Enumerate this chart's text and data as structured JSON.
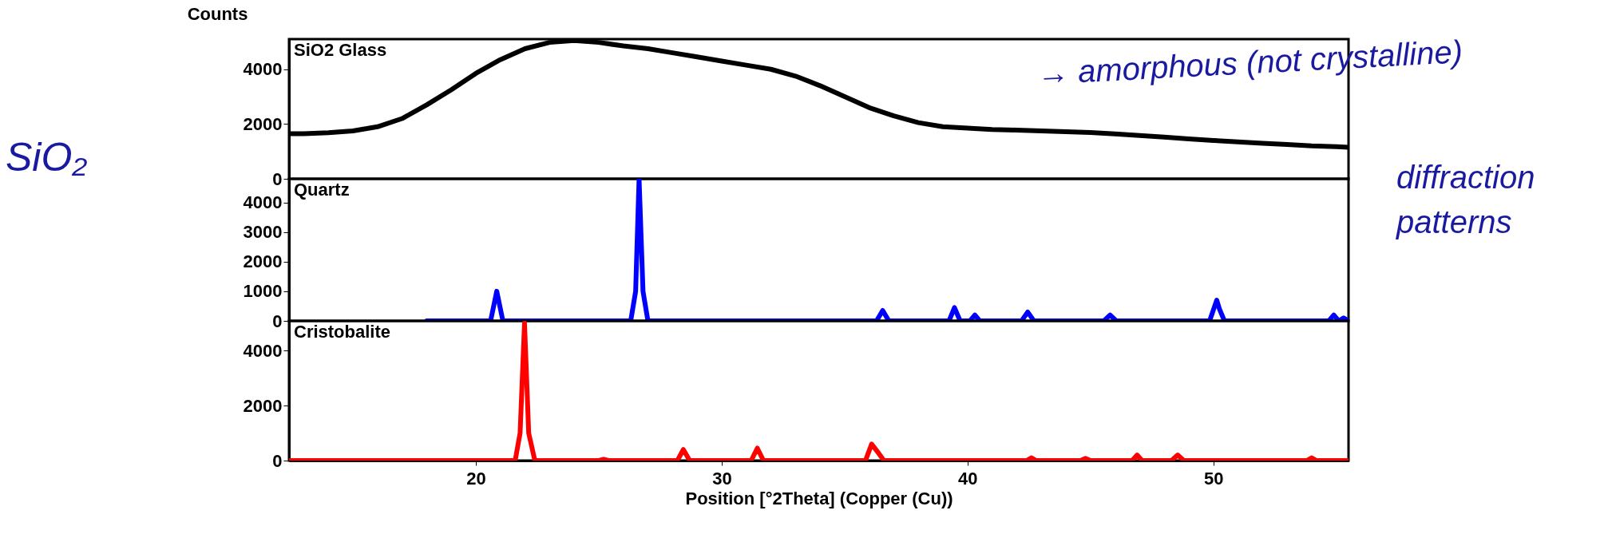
{
  "chart_data": [
    {
      "type": "line",
      "title": "SiO2 Glass",
      "ylabel": "Counts",
      "annotations": [
        "SiO₂",
        "→ amorphous (not crystalline)",
        "diffraction patterns"
      ],
      "x": [
        12.4,
        13,
        14,
        15,
        16,
        17,
        18,
        19,
        20,
        21,
        22,
        23,
        24,
        25,
        26,
        27,
        28,
        29,
        30,
        31,
        32,
        33,
        34,
        35,
        36,
        37,
        38,
        39,
        40,
        41,
        42,
        43,
        44,
        45,
        46,
        47,
        48,
        49,
        50,
        51,
        52,
        53,
        54,
        55,
        55.5
      ],
      "series": [
        {
          "color": "#000000",
          "values": [
            1650,
            1650,
            1680,
            1750,
            1900,
            2200,
            2700,
            3250,
            3850,
            4350,
            4750,
            4980,
            5050,
            4980,
            4850,
            4750,
            4600,
            4450,
            4300,
            4150,
            4000,
            3750,
            3400,
            3000,
            2600,
            2300,
            2050,
            1900,
            1850,
            1800,
            1780,
            1750,
            1720,
            1690,
            1640,
            1580,
            1520,
            1460,
            1400,
            1350,
            1300,
            1250,
            1200,
            1170,
            1150
          ]
        }
      ],
      "xlim": [
        12.4,
        55.5
      ],
      "ylim": [
        0,
        5100
      ],
      "yticks": [
        0,
        2000,
        4000
      ],
      "tick_labels": "y"
    },
    {
      "type": "line",
      "title": "Quartz",
      "x": [
        18,
        20.6,
        20.85,
        21.1,
        26.3,
        26.5,
        26.64,
        26.8,
        27.0,
        36.3,
        36.55,
        36.8,
        39.25,
        39.47,
        39.7,
        40.1,
        40.3,
        40.5,
        42.2,
        42.45,
        42.7,
        45.55,
        45.8,
        46.05,
        49.85,
        50.14,
        50.25,
        50.45,
        54.7,
        54.9,
        55.1,
        55.3,
        55.5
      ],
      "series": [
        {
          "color": "#0000ff",
          "values": [
            0,
            0,
            1000,
            0,
            0,
            1000,
            4800,
            1000,
            0,
            0,
            350,
            0,
            0,
            450,
            0,
            0,
            200,
            0,
            0,
            300,
            0,
            0,
            200,
            0,
            0,
            700,
            400,
            0,
            0,
            200,
            0,
            100,
            0
          ]
        }
      ],
      "xlim": [
        12.4,
        55.5
      ],
      "ylim": [
        0,
        4800
      ],
      "yticks": [
        0,
        1000,
        2000,
        3000,
        4000
      ],
      "tick_labels": "y"
    },
    {
      "type": "line",
      "title": "Cristobalite",
      "xlabel": "Position [°2Theta] (Copper (Cu))",
      "x": [
        12.4,
        21.6,
        21.8,
        21.98,
        22.15,
        22.4,
        25.0,
        25.2,
        25.4,
        28.2,
        28.44,
        28.7,
        31.2,
        31.45,
        31.7,
        35.85,
        36.1,
        36.4,
        36.6,
        42.4,
        42.6,
        42.8,
        44.6,
        44.8,
        45.0,
        46.7,
        46.9,
        47.1,
        48.3,
        48.55,
        48.8,
        53.8,
        54.0,
        54.2,
        55.5
      ],
      "series": [
        {
          "color": "#ff0000",
          "values": [
            0,
            0,
            1000,
            5000,
            1000,
            0,
            0,
            50,
            0,
            0,
            400,
            0,
            0,
            450,
            0,
            0,
            600,
            250,
            0,
            0,
            100,
            0,
            0,
            80,
            0,
            0,
            200,
            0,
            0,
            200,
            0,
            0,
            100,
            0,
            0
          ]
        }
      ],
      "xlim": [
        12.4,
        55.5
      ],
      "ylim": [
        0,
        5080
      ],
      "xticks": [
        20,
        30,
        40,
        50
      ],
      "yticks": [
        0,
        2000,
        4000
      ]
    }
  ]
}
